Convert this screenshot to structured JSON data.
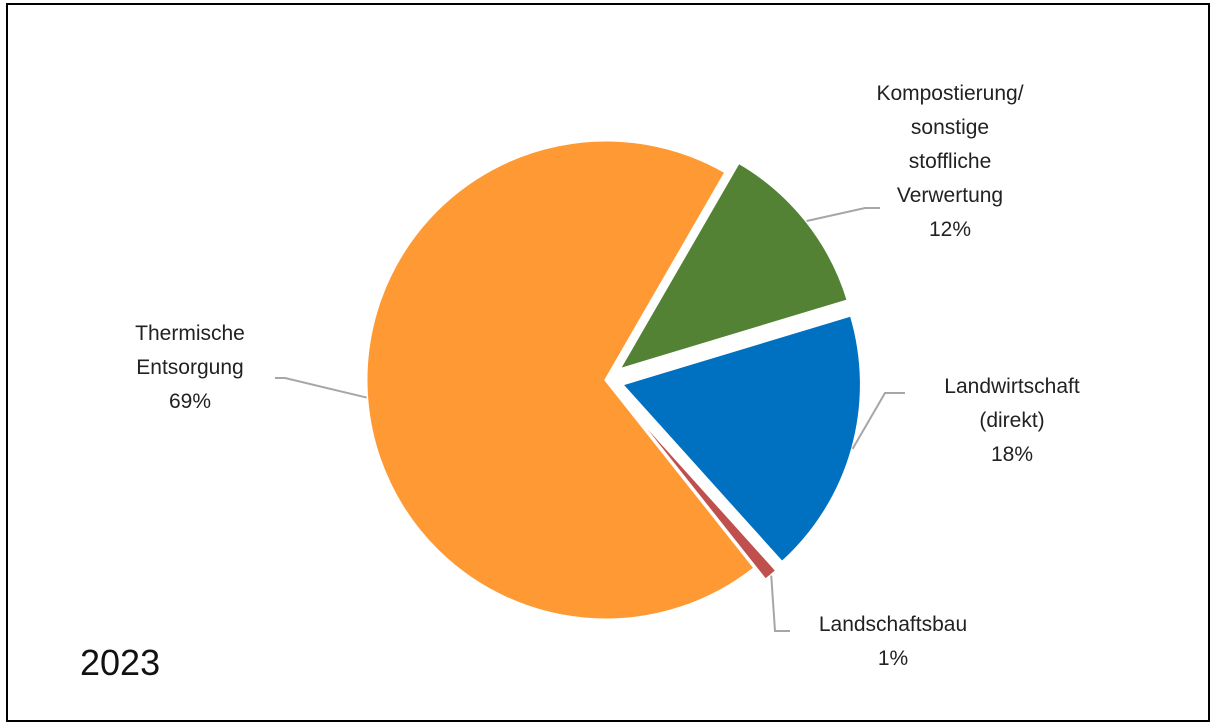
{
  "chart_data": {
    "type": "pie",
    "slices": [
      {
        "label_lines": [
          "Kompostierung/",
          "sonstige",
          "stoffliche",
          "Verwertung"
        ],
        "percent_label": "12%",
        "value": 12,
        "color": "#548235"
      },
      {
        "label_lines": [
          "Landwirtschaft",
          "(direkt)"
        ],
        "percent_label": "18%",
        "value": 18,
        "color": "#0070c0"
      },
      {
        "label_lines": [
          "Landschaftsbau"
        ],
        "percent_label": "1%",
        "value": 1,
        "color": "#c0504d"
      },
      {
        "label_lines": [
          "Thermische",
          "Entsorgung"
        ],
        "percent_label": "69%",
        "value": 69,
        "color": "#ff9933"
      }
    ],
    "annotation": "2023",
    "legend": "none"
  }
}
